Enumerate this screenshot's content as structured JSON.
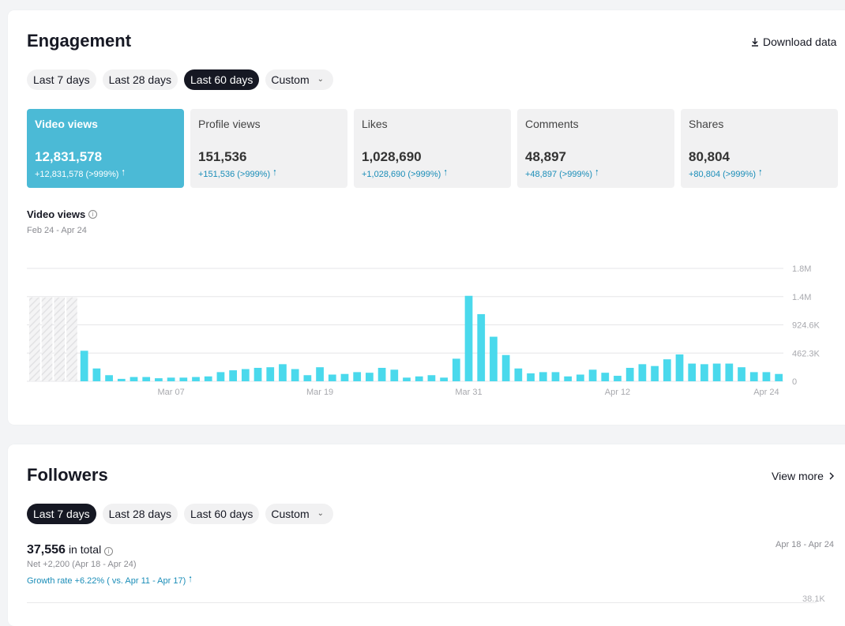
{
  "engagement": {
    "title": "Engagement",
    "download_label": "Download data",
    "ranges": [
      {
        "label": "Last 7 days",
        "active": false
      },
      {
        "label": "Last 28 days",
        "active": false
      },
      {
        "label": "Last 60 days",
        "active": true
      },
      {
        "label": "Custom",
        "active": false
      }
    ],
    "metrics": [
      {
        "label": "Video views",
        "value": "12,831,578",
        "delta": "+12,831,578 (>999%)",
        "active": true
      },
      {
        "label": "Profile views",
        "value": "151,536",
        "delta": "+151,536 (>999%)",
        "active": false
      },
      {
        "label": "Likes",
        "value": "1,028,690",
        "delta": "+1,028,690 (>999%)",
        "active": false
      },
      {
        "label": "Comments",
        "value": "48,897",
        "delta": "+48,897 (>999%)",
        "active": false
      },
      {
        "label": "Shares",
        "value": "80,804",
        "delta": "+80,804 (>999%)",
        "active": false
      }
    ],
    "chart_title": "Video views",
    "chart_range": "Feb 24 - Apr 24"
  },
  "chart_data": {
    "type": "bar",
    "title": "Video views",
    "subtitle": "Feb 24 - Apr 24",
    "ylim": [
      0,
      1800000
    ],
    "yticks": [
      "0",
      "462.3K",
      "924.6K",
      "1.4M",
      "1.8M"
    ],
    "ytick_values": [
      0,
      462300,
      924600,
      1386900,
      1849200
    ],
    "xticks": [
      {
        "label": "Mar 07",
        "index": 11
      },
      {
        "label": "Mar 19",
        "index": 23
      },
      {
        "label": "Mar 31",
        "index": 35
      },
      {
        "label": "Apr 12",
        "index": 47
      },
      {
        "label": "Apr 24",
        "index": 59
      }
    ],
    "no_data_days": 4,
    "bar_color": "#4ad9ec",
    "values": [
      0,
      0,
      0,
      0,
      500000,
      210000,
      100000,
      40000,
      70000,
      70000,
      50000,
      60000,
      60000,
      70000,
      80000,
      150000,
      180000,
      200000,
      220000,
      230000,
      280000,
      200000,
      100000,
      230000,
      110000,
      120000,
      150000,
      140000,
      220000,
      190000,
      60000,
      80000,
      100000,
      60000,
      370000,
      1400000,
      1100000,
      730000,
      430000,
      210000,
      130000,
      150000,
      150000,
      80000,
      110000,
      190000,
      140000,
      90000,
      220000,
      280000,
      250000,
      360000,
      440000,
      290000,
      280000,
      290000,
      290000,
      230000,
      150000,
      150000,
      120000
    ],
    "grid": true
  },
  "followers": {
    "title": "Followers",
    "view_more_label": "View more",
    "ranges": [
      {
        "label": "Last 7 days",
        "active": true
      },
      {
        "label": "Last 28 days",
        "active": false
      },
      {
        "label": "Last 60 days",
        "active": false
      },
      {
        "label": "Custom",
        "active": false
      }
    ],
    "total_value": "37,556",
    "total_suffix": "in total",
    "net": "Net +2,200 (Apr 18 - Apr 24)",
    "growth": "Growth rate +6.22% ( vs. Apr 11 - Apr 17)",
    "range": "Apr 18 - Apr 24",
    "ytick_top": "38.1K"
  },
  "colors": {
    "accent": "#4bbad6",
    "bar": "#4ad9ec",
    "link": "#1a8db8",
    "dark": "#161823"
  }
}
